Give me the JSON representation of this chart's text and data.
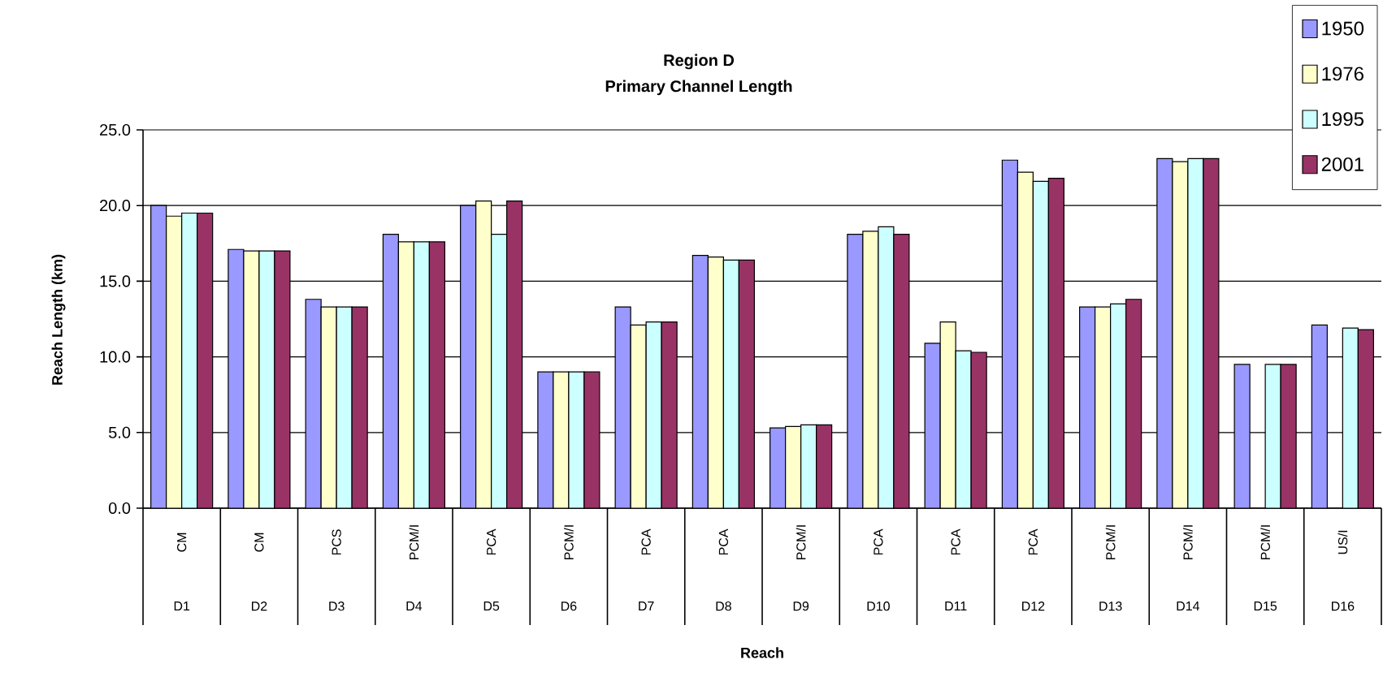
{
  "chart_data": {
    "type": "bar",
    "title": "Region D",
    "subtitle": "Primary Channel Length",
    "xlabel": "Reach",
    "ylabel": "Reach Length (km)",
    "categories": [
      "D1",
      "D2",
      "D3",
      "D4",
      "D5",
      "D6",
      "D7",
      "D8",
      "D9",
      "D10",
      "D11",
      "D12",
      "D13",
      "D14",
      "D15",
      "D16"
    ],
    "series": [
      {
        "name": "1950",
        "color": "#9999ff",
        "values": [
          20.0,
          17.1,
          13.8,
          18.1,
          20.0,
          9.0,
          13.3,
          16.7,
          5.3,
          18.1,
          10.9,
          23.0,
          13.3,
          23.1,
          9.5,
          12.1
        ]
      },
      {
        "name": "1976",
        "color": "#ffffcc",
        "values": [
          19.3,
          17.0,
          13.3,
          17.6,
          20.3,
          9.0,
          12.1,
          16.6,
          5.4,
          18.3,
          12.3,
          22.2,
          13.3,
          22.9,
          null,
          null
        ]
      },
      {
        "name": "1995",
        "color": "#ccffff",
        "values": [
          19.5,
          17.0,
          13.3,
          17.6,
          18.1,
          9.0,
          12.3,
          16.4,
          5.5,
          18.6,
          10.4,
          21.6,
          13.5,
          23.1,
          9.5,
          11.9
        ]
      },
      {
        "name": "2001",
        "color": "#993366",
        "values": [
          19.5,
          17.0,
          13.3,
          17.6,
          20.3,
          9.0,
          12.3,
          16.4,
          5.5,
          18.1,
          10.3,
          21.8,
          13.8,
          23.1,
          9.5,
          11.8
        ]
      }
    ],
    "ylim": [
      0,
      25
    ],
    "yticks": [
      {
        "value": 0,
        "label": "0.0"
      },
      {
        "value": 5,
        "label": "5.0"
      },
      {
        "value": 10,
        "label": "10.0"
      },
      {
        "value": 15,
        "label": "15.0"
      },
      {
        "value": 20,
        "label": "20.0"
      },
      {
        "value": 25,
        "label": "25.0"
      }
    ],
    "grid": "y",
    "legend": "top right",
    "annotations": [
      "CM",
      "CM",
      "PCS",
      "PCM/I",
      "PCA",
      "PCM/I",
      "PCA",
      "PCA",
      "PCM/I",
      "PCA",
      "PCA",
      "PCA",
      "PCM/I",
      "PCM/I",
      "PCM/I",
      "US/I"
    ]
  }
}
